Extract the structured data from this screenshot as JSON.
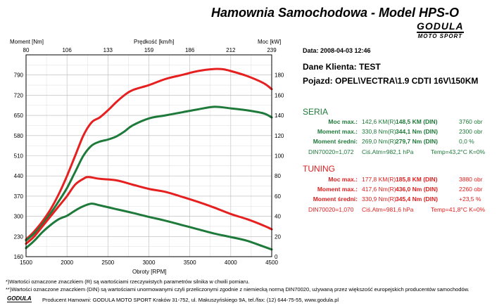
{
  "header": {
    "title": "Hamownia Samochodowa   -   Model HPS-O",
    "brand": "GODULA",
    "brand_sub": "MOTO SPORT"
  },
  "chart_data": {
    "type": "line",
    "xlabel": "Obroty [RPM]",
    "ylabel_left": "Moment [Nm]",
    "ylabel_right": "Moc [kW]",
    "top_axis_label": "Prędkość [km/h]",
    "x_ticks": [
      "1500",
      "2000",
      "2500",
      "3000",
      "3500",
      "4000",
      "4500"
    ],
    "xlim": [
      1500,
      4500
    ],
    "y_left_ticks": [
      "160",
      "230",
      "300",
      "370",
      "440",
      "510",
      "580",
      "650",
      "720",
      "790"
    ],
    "ylim_left": [
      160,
      860
    ],
    "y_right_ticks": [
      "0",
      "20",
      "40",
      "60",
      "80",
      "100",
      "120",
      "140",
      "160",
      "180"
    ],
    "ylim_right": [
      0,
      200
    ],
    "top_ticks": [
      "80",
      "106",
      "133",
      "159",
      "186",
      "212",
      "239"
    ],
    "grid": true,
    "series": [
      {
        "color": "#e62020",
        "axis": "right",
        "x": [
          1500,
          1600,
          1700,
          1800,
          1900,
          2000,
          2100,
          2200,
          2300,
          2400,
          2500,
          2600,
          2700,
          2800,
          3000,
          3200,
          3400,
          3600,
          3800,
          3900,
          4000,
          4200,
          4400,
          4500
        ],
        "y": [
          17,
          25,
          35,
          47,
          62,
          80,
          100,
          120,
          133,
          138,
          145,
          153,
          160,
          165,
          170,
          176,
          180,
          184,
          186,
          185.8,
          184,
          179,
          172,
          166
        ]
      },
      {
        "color": "#1e7a3a",
        "axis": "right",
        "x": [
          1500,
          1600,
          1700,
          1800,
          1900,
          2000,
          2100,
          2200,
          2300,
          2400,
          2500,
          2600,
          2700,
          2800,
          3000,
          3200,
          3400,
          3600,
          3800,
          4000,
          4200,
          4400,
          4500
        ],
        "y": [
          16,
          23,
          32,
          43,
          55,
          68,
          84,
          100,
          110,
          114,
          116,
          119,
          124,
          130,
          137,
          140,
          143,
          146,
          148.5,
          147,
          145,
          142,
          138
        ]
      },
      {
        "color": "#e62020",
        "axis": "left",
        "x": [
          1500,
          1600,
          1700,
          1800,
          1900,
          2000,
          2100,
          2200,
          2260,
          2400,
          2600,
          2800,
          3000,
          3200,
          3400,
          3600,
          3800,
          4000,
          4200,
          4400,
          4500
        ],
        "y": [
          205,
          230,
          265,
          300,
          335,
          370,
          410,
          430,
          436,
          430,
          425,
          410,
          395,
          385,
          368,
          350,
          330,
          308,
          290,
          268,
          255
        ]
      },
      {
        "color": "#1e7a3a",
        "axis": "left",
        "x": [
          1500,
          1600,
          1700,
          1800,
          1900,
          2000,
          2100,
          2200,
          2300,
          2400,
          2600,
          2800,
          3000,
          3200,
          3400,
          3600,
          3800,
          4000,
          4200,
          4400,
          4500
        ],
        "y": [
          190,
          215,
          245,
          270,
          290,
          302,
          320,
          335,
          344,
          338,
          325,
          312,
          298,
          285,
          270,
          255,
          240,
          228,
          215,
          195,
          185
        ]
      }
    ]
  },
  "info": {
    "date": "Data: 2008-04-03  12:46",
    "client": "Dane Klienta: TEST",
    "vehicle": "Pojazd: OPEL\\VECTRA\\1.9 CDTI 16V\\150KM"
  },
  "seria": {
    "title": "SERIA",
    "rows": [
      {
        "label": "Moc max.:",
        "r": "142,6 KM(R)",
        "din": "148,5 KM (DIN)",
        "rpm": "3760 obr"
      },
      {
        "label": "Moment max.:",
        "r": "330,8 Nm(R)",
        "din": "344,1 Nm (DIN)",
        "rpm": "2300 obr"
      },
      {
        "label": "Moment średni:",
        "r": "269,0 Nm(R)",
        "din": "279,7 Nm (DIN)",
        "rpm": "0,0 %"
      }
    ],
    "din_line": {
      "din": "DIN70020=1,072",
      "atm": "Ciś.Atm=982,1 hPa",
      "temp": "Temp=43,2°C  K=0%"
    }
  },
  "tuning": {
    "title": "TUNING",
    "rows": [
      {
        "label": "Moc max.:",
        "r": "177,8 KM(R)",
        "din": "185,8 KM (DIN)",
        "rpm": "3880 obr"
      },
      {
        "label": "Moment max.:",
        "r": "417,6 Nm(R)",
        "din": "436,0 Nm (DIN)",
        "rpm": "2260 obr"
      },
      {
        "label": "Moment średni:",
        "r": "330,9 Nm(R)",
        "din": "345,4 Nm (DIN)",
        "rpm": "+23,5 %"
      }
    ],
    "din_line": {
      "din": "DIN70020=1,070",
      "atm": "Ciś.Atm=981,6 hPa",
      "temp": "Temp=41,8°C  K=0%"
    }
  },
  "footer": {
    "note1": "*)Wartości oznaczone znaczkiem (R) są wartościami rzeczywistych parametrów silnika w chwili pomiaru.",
    "note2": "**)Wartości oznaczone znaczkiem (DIN) są wartościami unormowanymi czyli przeliczonymi zgodnie z niemiecką normą DIN70020, używaną przez większość europejskich producentów samochodów.",
    "producer": "Producent Hamowni: GODULA MOTO SPORT Kraków 31-752, ul. Makuszyńskiego 9A, tel./fax: (12) 644-75-55, www.godula.pl",
    "logo": "GODULA"
  }
}
